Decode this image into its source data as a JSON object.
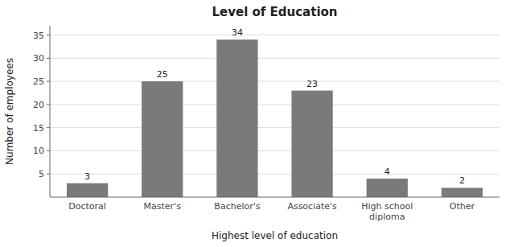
{
  "chart_data": {
    "type": "bar",
    "title": "Level of Education",
    "xlabel": "Highest level of education",
    "ylabel": "Number of employees",
    "categories": [
      "Doctoral",
      "Master's",
      "Bachelor's",
      "Associate's",
      "High school\ndiploma",
      "Other"
    ],
    "values": [
      3,
      25,
      34,
      23,
      4,
      2
    ],
    "color": "#7a7a7a",
    "ylim": [
      0,
      37
    ],
    "yticks": [
      5,
      10,
      15,
      20,
      25,
      30,
      35
    ],
    "grid": true,
    "data_labels": true
  }
}
